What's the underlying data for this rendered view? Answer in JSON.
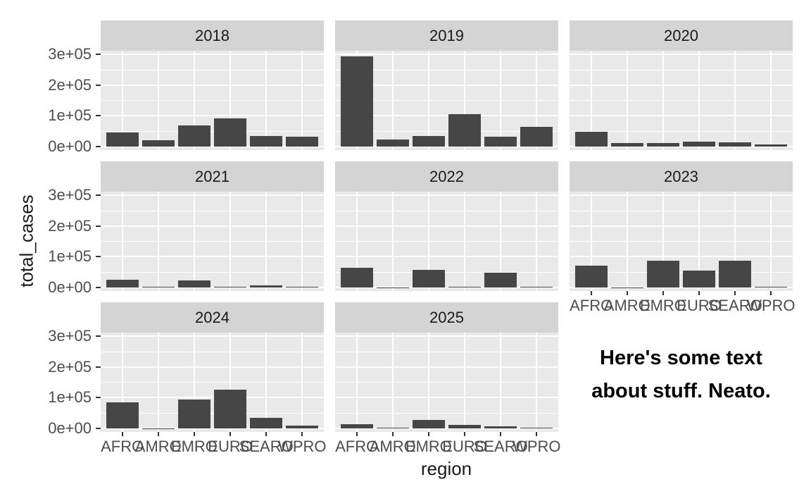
{
  "figure": {
    "background": "#ffffff",
    "panel_bg": "#e9e9e9",
    "strip_bg": "#d4d4d4",
    "grid_color": "#ffffff",
    "bar_color": "#464646",
    "tick_color": "#333333",
    "axis_text_color": "#4d4d4d",
    "strip_text_color": "#1a1a1a",
    "title_color": "#1a1a1a"
  },
  "chart_data": {
    "type": "bar",
    "facet_by": "year",
    "title": "",
    "xlabel": "region",
    "ylabel": "total_cases",
    "legend": "none",
    "grid": "on",
    "categories": [
      "AFRO",
      "AMRO",
      "EMRO",
      "EURO",
      "SEARO",
      "WPRO"
    ],
    "y_tick_values": [
      0,
      100000,
      200000,
      300000
    ],
    "y_tick_labels": [
      "0e+00",
      "1e+05",
      "2e+05",
      "3e+05"
    ],
    "y_minor_values": [
      50000,
      150000,
      250000
    ],
    "ylim": [
      -11000,
      312000
    ],
    "facets": [
      {
        "label": "2018",
        "values": [
          45000,
          20000,
          68000,
          91000,
          35000,
          32000
        ]
      },
      {
        "label": "2019",
        "values": [
          293000,
          24000,
          35000,
          106000,
          33000,
          65000
        ]
      },
      {
        "label": "2020",
        "values": [
          47000,
          12000,
          11000,
          17000,
          14000,
          8000
        ]
      },
      {
        "label": "2021",
        "values": [
          26000,
          2000,
          24000,
          1500,
          7500,
          1500
        ]
      },
      {
        "label": "2022",
        "values": [
          65000,
          1000,
          57000,
          2500,
          47000,
          2000
        ]
      },
      {
        "label": "2023",
        "values": [
          71000,
          500,
          87000,
          56000,
          87000,
          3000
        ]
      },
      {
        "label": "2024",
        "values": [
          85000,
          500,
          94000,
          125000,
          34000,
          8500
        ]
      },
      {
        "label": "2025",
        "values": [
          13000,
          3000,
          28000,
          12000,
          8000,
          2300
        ]
      }
    ],
    "annotation_lines": [
      "Here's some text",
      "about stuff. Neato."
    ]
  }
}
